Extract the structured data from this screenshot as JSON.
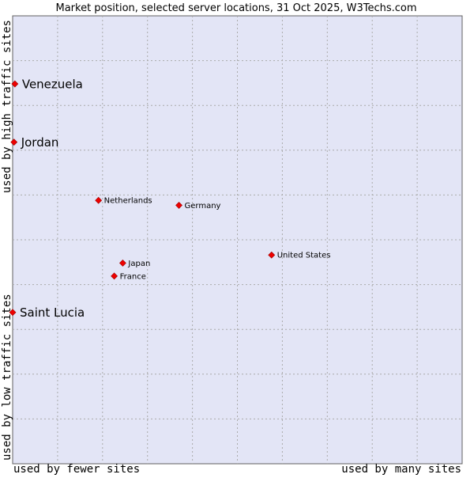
{
  "chart_data": {
    "type": "scatter",
    "title": "Market position, selected server locations, 31 Oct 2025, W3Techs.com",
    "xlabel_left": "used by fewer sites",
    "xlabel_right": "used by many sites",
    "ylabel_bottom": "used by low traffic sites",
    "ylabel_top": "used by high traffic sites",
    "xlim": [
      0,
      100
    ],
    "ylim": [
      0,
      100
    ],
    "grid": true,
    "points": [
      {
        "name": "Venezuela",
        "x": 0.5,
        "y": 84.8,
        "emphasis": true,
        "label_side": "right"
      },
      {
        "name": "Jordan",
        "x": 0.3,
        "y": 71.8,
        "emphasis": true,
        "label_side": "right"
      },
      {
        "name": "Netherlands",
        "x": 19.1,
        "y": 58.8,
        "emphasis": false,
        "label_side": "right"
      },
      {
        "name": "Germany",
        "x": 37.0,
        "y": 57.7,
        "emphasis": false,
        "label_side": "right"
      },
      {
        "name": "United States",
        "x": 57.6,
        "y": 46.6,
        "emphasis": false,
        "label_side": "right"
      },
      {
        "name": "Japan",
        "x": 24.5,
        "y": 44.8,
        "emphasis": false,
        "label_side": "right"
      },
      {
        "name": "France",
        "x": 22.6,
        "y": 41.9,
        "emphasis": false,
        "label_side": "right"
      },
      {
        "name": "Saint Lucia",
        "x": 0.0,
        "y": 33.8,
        "emphasis": true,
        "label_side": "right"
      }
    ]
  }
}
